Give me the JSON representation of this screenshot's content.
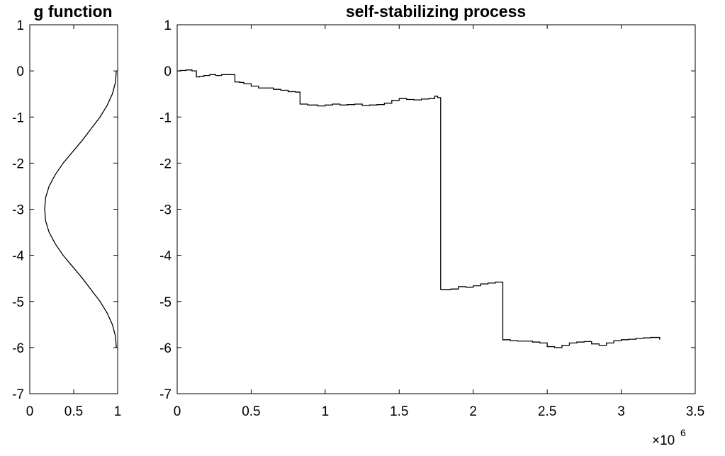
{
  "chart_data": [
    {
      "id": "g",
      "type": "line",
      "title": "g function",
      "xlabel": "",
      "ylabel": "",
      "xlim": [
        0,
        1
      ],
      "ylim": [
        -7,
        1
      ],
      "xticks": [
        0,
        0.5,
        1
      ],
      "xtick_labels": [
        "0",
        "0.5",
        "1"
      ],
      "yticks": [
        1,
        0,
        -1,
        -2,
        -3,
        -4,
        -5,
        -6,
        -7
      ],
      "ytick_labels": [
        "1",
        "0",
        "-1",
        "-2",
        "-3",
        "-4",
        "-5",
        "-6",
        "-7"
      ],
      "grid": false,
      "series": [
        {
          "x": [
            0.985,
            0.975,
            0.94,
            0.88,
            0.8,
            0.7,
            0.6,
            0.49,
            0.38,
            0.29,
            0.22,
            0.18,
            0.17,
            0.18,
            0.22,
            0.29,
            0.38,
            0.49,
            0.6,
            0.7,
            0.8,
            0.88,
            0.94,
            0.975,
            0.985
          ],
          "y": [
            0,
            -0.25,
            -0.5,
            -0.75,
            -1.0,
            -1.25,
            -1.5,
            -1.75,
            -2.0,
            -2.25,
            -2.5,
            -2.75,
            -3.0,
            -3.25,
            -3.5,
            -3.75,
            -4.0,
            -4.25,
            -4.5,
            -4.75,
            -5.0,
            -5.25,
            -5.5,
            -5.75,
            -6.0
          ]
        }
      ]
    },
    {
      "id": "process",
      "type": "line",
      "title": "self-stabilizing process",
      "xlabel": "",
      "ylabel": "",
      "xlim": [
        0,
        3500000
      ],
      "ylim": [
        -7,
        1
      ],
      "xticks": [
        0,
        500000,
        1000000,
        1500000,
        2000000,
        2500000,
        3000000,
        3500000
      ],
      "xtick_labels": [
        "0",
        "0.5",
        "1",
        "1.5",
        "2",
        "2.5",
        "3",
        "3.5"
      ],
      "x_multiplier": "×10",
      "x_multiplier_exponent": "6",
      "yticks": [
        1,
        0,
        -1,
        -2,
        -3,
        -4,
        -5,
        -6,
        -7
      ],
      "ytick_labels": [
        "1",
        "0",
        "-1",
        "-2",
        "-3",
        "-4",
        "-5",
        "-6",
        "-7"
      ],
      "grid": false,
      "step": true,
      "series": [
        {
          "x": [
            0,
            20000,
            60000,
            100000,
            130000,
            150000,
            180000,
            220000,
            260000,
            300000,
            390000,
            420000,
            450000,
            500000,
            550000,
            600000,
            650000,
            700000,
            750000,
            800000,
            830000,
            880000,
            950000,
            1000000,
            1050000,
            1100000,
            1150000,
            1200000,
            1250000,
            1300000,
            1350000,
            1400000,
            1450000,
            1500000,
            1550000,
            1600000,
            1650000,
            1700000,
            1740000,
            1760000,
            1780000,
            1850000,
            1900000,
            1950000,
            2000000,
            2050000,
            2100000,
            2150000,
            2200000,
            2250000,
            2300000,
            2350000,
            2400000,
            2450000,
            2500000,
            2550000,
            2600000,
            2650000,
            2700000,
            2750000,
            2800000,
            2850000,
            2900000,
            2950000,
            3000000,
            3050000,
            3100000,
            3150000,
            3200000,
            3260000
          ],
          "y": [
            0,
            0.01,
            0.02,
            0.0,
            -0.13,
            -0.12,
            -0.1,
            -0.08,
            -0.1,
            -0.08,
            -0.24,
            -0.25,
            -0.28,
            -0.33,
            -0.37,
            -0.37,
            -0.4,
            -0.42,
            -0.45,
            -0.46,
            -0.72,
            -0.74,
            -0.76,
            -0.74,
            -0.72,
            -0.74,
            -0.73,
            -0.72,
            -0.75,
            -0.74,
            -0.73,
            -0.7,
            -0.64,
            -0.6,
            -0.62,
            -0.63,
            -0.61,
            -0.6,
            -0.55,
            -0.58,
            -4.74,
            -4.73,
            -4.68,
            -4.69,
            -4.66,
            -4.62,
            -4.6,
            -4.58,
            -5.83,
            -5.85,
            -5.86,
            -5.86,
            -5.88,
            -5.9,
            -5.98,
            -6.0,
            -5.95,
            -5.9,
            -5.88,
            -5.87,
            -5.92,
            -5.95,
            -5.9,
            -5.85,
            -5.83,
            -5.82,
            -5.8,
            -5.79,
            -5.78,
            -5.83
          ]
        }
      ]
    }
  ]
}
